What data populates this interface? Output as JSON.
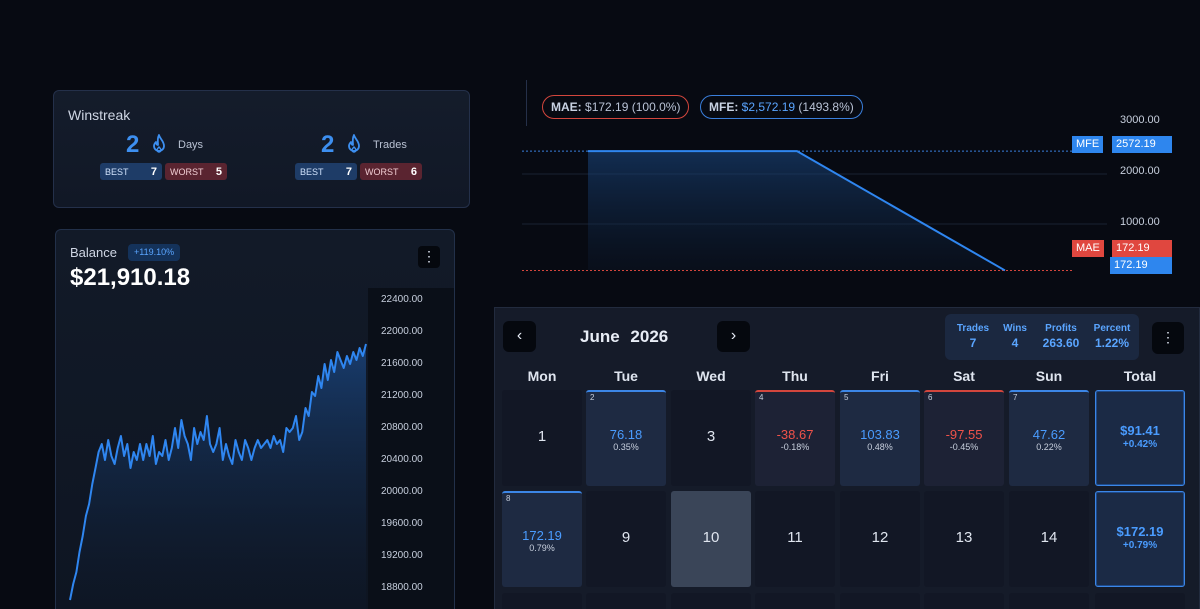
{
  "winstreak": {
    "title": "Winstreak",
    "days": {
      "value": "2",
      "label": "Days",
      "best_label": "BEST",
      "best": "7",
      "worst_label": "WORST",
      "worst": "5"
    },
    "trades": {
      "value": "2",
      "label": "Trades",
      "best_label": "BEST",
      "best": "7",
      "worst_label": "WORST",
      "worst": "6"
    },
    "icon": "flame-icon"
  },
  "balance": {
    "label": "Balance",
    "change": "+119.10%",
    "value": "$21,910.18",
    "menu_icon": "kebab-icon",
    "y_ticks": [
      "22400.00",
      "22000.00",
      "21600.00",
      "21200.00",
      "20800.00",
      "20400.00",
      "20000.00",
      "19600.00",
      "19200.00",
      "18800.00"
    ]
  },
  "chart_data": [
    {
      "type": "area",
      "title": "Balance",
      "ylim": [
        18600,
        22600
      ],
      "y_ticks": [
        22400,
        22000,
        21600,
        21200,
        20800,
        20400,
        20000,
        19600,
        19200,
        18800
      ],
      "series": [
        {
          "values": [
            18700,
            18900,
            19050,
            19300,
            19500,
            19750,
            19900,
            20150,
            20350,
            20550,
            20650,
            20450,
            20700,
            20500,
            20400,
            20600,
            20750,
            20500,
            20650,
            20350,
            20550,
            20450,
            20650,
            20450,
            20650,
            20500,
            20750,
            20400,
            20550,
            20500,
            20700,
            20450,
            20600,
            20850,
            20600,
            20950,
            20750,
            20650,
            20450,
            20850,
            20650,
            20800,
            20700,
            21000,
            20650,
            20550,
            20650,
            20850,
            20450,
            20650,
            20500,
            20400,
            20700,
            20550,
            20450,
            20700,
            20600,
            20450,
            20600,
            20700,
            20600,
            20650,
            20700,
            20600,
            20750,
            20650,
            20700,
            20550,
            20850,
            20800,
            20850,
            21000,
            20700,
            20800,
            21100,
            21000,
            21300,
            21250,
            21500,
            21350,
            21650,
            21450,
            21700,
            21550,
            21800,
            21700,
            21600,
            21750,
            21650,
            21800,
            21700,
            21850,
            21750,
            21900
          ]
        }
      ]
    },
    {
      "type": "area",
      "title": "",
      "y_ticks": [
        3000.0,
        2000.0,
        1000.0
      ],
      "ylim": [
        0,
        3400
      ],
      "series": [
        {
          "values": [
            2572.19,
            2572.19,
            172.19
          ]
        }
      ],
      "annotations": {
        "mae": {
          "label": "MAE",
          "value": "172.19"
        },
        "mfe": {
          "label": "MFE",
          "value": "2572.19"
        },
        "current": "172.19"
      }
    }
  ],
  "mae_mfe": {
    "mae_key": "MAE:",
    "mae_value": "$172.19",
    "mae_pct": "(100.0%)",
    "mfe_key": "MFE:",
    "mfe_value": "$2,572.19",
    "mfe_pct": "(1493.8%)",
    "y_ticks": [
      "3000.00",
      "2000.00",
      "1000.00"
    ],
    "mfe_tag_label": "MFE",
    "mfe_tag_value": "2572.19",
    "mae_tag_label": "MAE",
    "mae_tag_value": "172.19",
    "current_tag_value": "172.19",
    "colors": {
      "mae": "#d3463d",
      "mfe": "#3a7fdc"
    }
  },
  "calendar": {
    "prev_icon": "chevron-left-icon",
    "next_icon": "chevron-right-icon",
    "month": "June",
    "year": "2026",
    "stats": [
      {
        "label": "Trades",
        "value": "7"
      },
      {
        "label": "Wins",
        "value": "4"
      },
      {
        "label": "Profits",
        "value": "263.60"
      },
      {
        "label": "Percent",
        "value": "1.22%"
      }
    ],
    "weekdays": [
      "Mon",
      "Tue",
      "Wed",
      "Thu",
      "Fri",
      "Sat",
      "Sun",
      "Total"
    ],
    "week1": {
      "mon": "1",
      "tue": {
        "corner": "2",
        "pnl": "76.18",
        "pct": "0.35%"
      },
      "wed": "3",
      "thu": {
        "corner": "4",
        "pnl": "-38.67",
        "pct": "-0.18%"
      },
      "fri": {
        "corner": "5",
        "pnl": "103.83",
        "pct": "0.48%"
      },
      "sat": {
        "corner": "6",
        "pnl": "-97.55",
        "pct": "-0.45%"
      },
      "sun": {
        "corner": "7",
        "pnl": "47.62",
        "pct": "0.22%"
      },
      "total": {
        "value": "$91.41",
        "pct": "+0.42%"
      }
    },
    "week2": {
      "mon": {
        "corner": "8",
        "pnl": "172.19",
        "pct": "0.79%"
      },
      "tue": "9",
      "wed": "10",
      "thu": "11",
      "fri": "12",
      "sat": "13",
      "sun": "14",
      "total": {
        "value": "$172.19",
        "pct": "+0.79%"
      }
    }
  }
}
